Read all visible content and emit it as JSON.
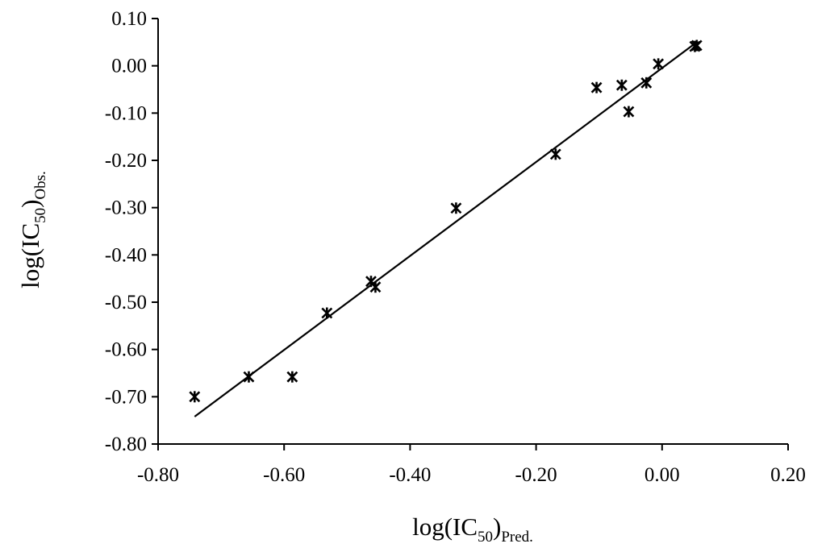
{
  "chart_data": {
    "type": "scatter",
    "xlabel_base": "log(IC",
    "xlabel_num": "50",
    "xlabel_close": ")",
    "xlabel_sub": "Pred.",
    "ylabel_base": "log(IC",
    "ylabel_num": "50",
    "ylabel_close": ")",
    "ylabel_sub": "Obs.",
    "xlim": [
      -0.8,
      0.2
    ],
    "ylim": [
      -0.8,
      0.1
    ],
    "x_ticks": [
      -0.8,
      -0.6,
      -0.4,
      -0.2,
      0.0,
      0.2
    ],
    "y_ticks": [
      -0.8,
      -0.7,
      -0.6,
      -0.5,
      -0.4,
      -0.3,
      -0.2,
      -0.1,
      0.0,
      0.1
    ],
    "x_tick_labels": [
      "-0.80",
      "-0.60",
      "-0.40",
      "-0.20",
      "0.00",
      "0.20"
    ],
    "y_tick_labels": [
      "-0.80",
      "-0.70",
      "-0.60",
      "-0.50",
      "-0.40",
      "-0.30",
      "-0.20",
      "-0.10",
      "0.00",
      "0.10"
    ],
    "grid": false,
    "marker": "asterisk",
    "points": [
      {
        "x": -0.742,
        "y": -0.7
      },
      {
        "x": -0.656,
        "y": -0.658
      },
      {
        "x": -0.587,
        "y": -0.658
      },
      {
        "x": -0.532,
        "y": -0.523
      },
      {
        "x": -0.462,
        "y": -0.456
      },
      {
        "x": -0.455,
        "y": -0.468
      },
      {
        "x": -0.327,
        "y": -0.301
      },
      {
        "x": -0.169,
        "y": -0.187
      },
      {
        "x": -0.104,
        "y": -0.046
      },
      {
        "x": -0.064,
        "y": -0.041
      },
      {
        "x": -0.053,
        "y": -0.097
      },
      {
        "x": -0.025,
        "y": -0.036
      },
      {
        "x": -0.006,
        "y": 0.004
      },
      {
        "x": 0.052,
        "y": 0.041
      },
      {
        "x": 0.055,
        "y": 0.043
      }
    ],
    "fit_line": {
      "x": [
        -0.742,
        0.055
      ],
      "y": [
        -0.742,
        0.05
      ]
    },
    "colors": {
      "marker": "#000000",
      "line": "#000000",
      "axis": "#000000"
    }
  }
}
